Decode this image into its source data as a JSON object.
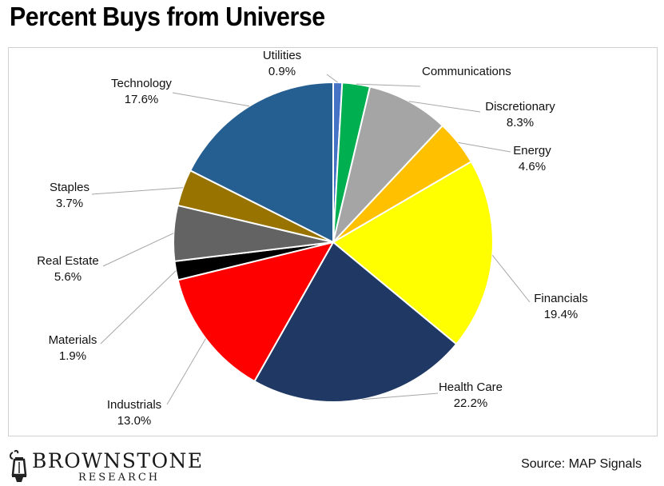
{
  "title": "Percent Buys from Universe",
  "source": "Source: MAP Signals",
  "logo": {
    "name": "BROWNSTONE",
    "sub": "RESEARCH"
  },
  "chart_data": {
    "type": "pie",
    "title": "Percent Buys from Universe",
    "slices": [
      {
        "label": "Utilities",
        "value": 0.9,
        "display": "0.9%",
        "color": "#4472C4"
      },
      {
        "label": "Communications",
        "value": 2.8,
        "display": "",
        "color": "#00B050"
      },
      {
        "label": "Discretionary",
        "value": 8.3,
        "display": "8.3%",
        "color": "#A5A5A5"
      },
      {
        "label": "Energy",
        "value": 4.6,
        "display": "4.6%",
        "color": "#FFC000"
      },
      {
        "label": "Financials",
        "value": 19.4,
        "display": "19.4%",
        "color": "#FFFF00"
      },
      {
        "label": "Health Care",
        "value": 22.2,
        "display": "22.2%",
        "color": "#203864"
      },
      {
        "label": "Industrials",
        "value": 13.0,
        "display": "13.0%",
        "color": "#FF0000"
      },
      {
        "label": "Materials",
        "value": 1.9,
        "display": "1.9%",
        "color": "#000000"
      },
      {
        "label": "Real Estate",
        "value": 5.6,
        "display": "5.6%",
        "color": "#636363"
      },
      {
        "label": "Staples",
        "value": 3.7,
        "display": "3.7%",
        "color": "#997300"
      },
      {
        "label": "Technology",
        "value": 17.6,
        "display": "17.6%",
        "color": "#255E91"
      }
    ],
    "start": "12 o'clock",
    "direction": "clockwise",
    "legend": "none"
  }
}
